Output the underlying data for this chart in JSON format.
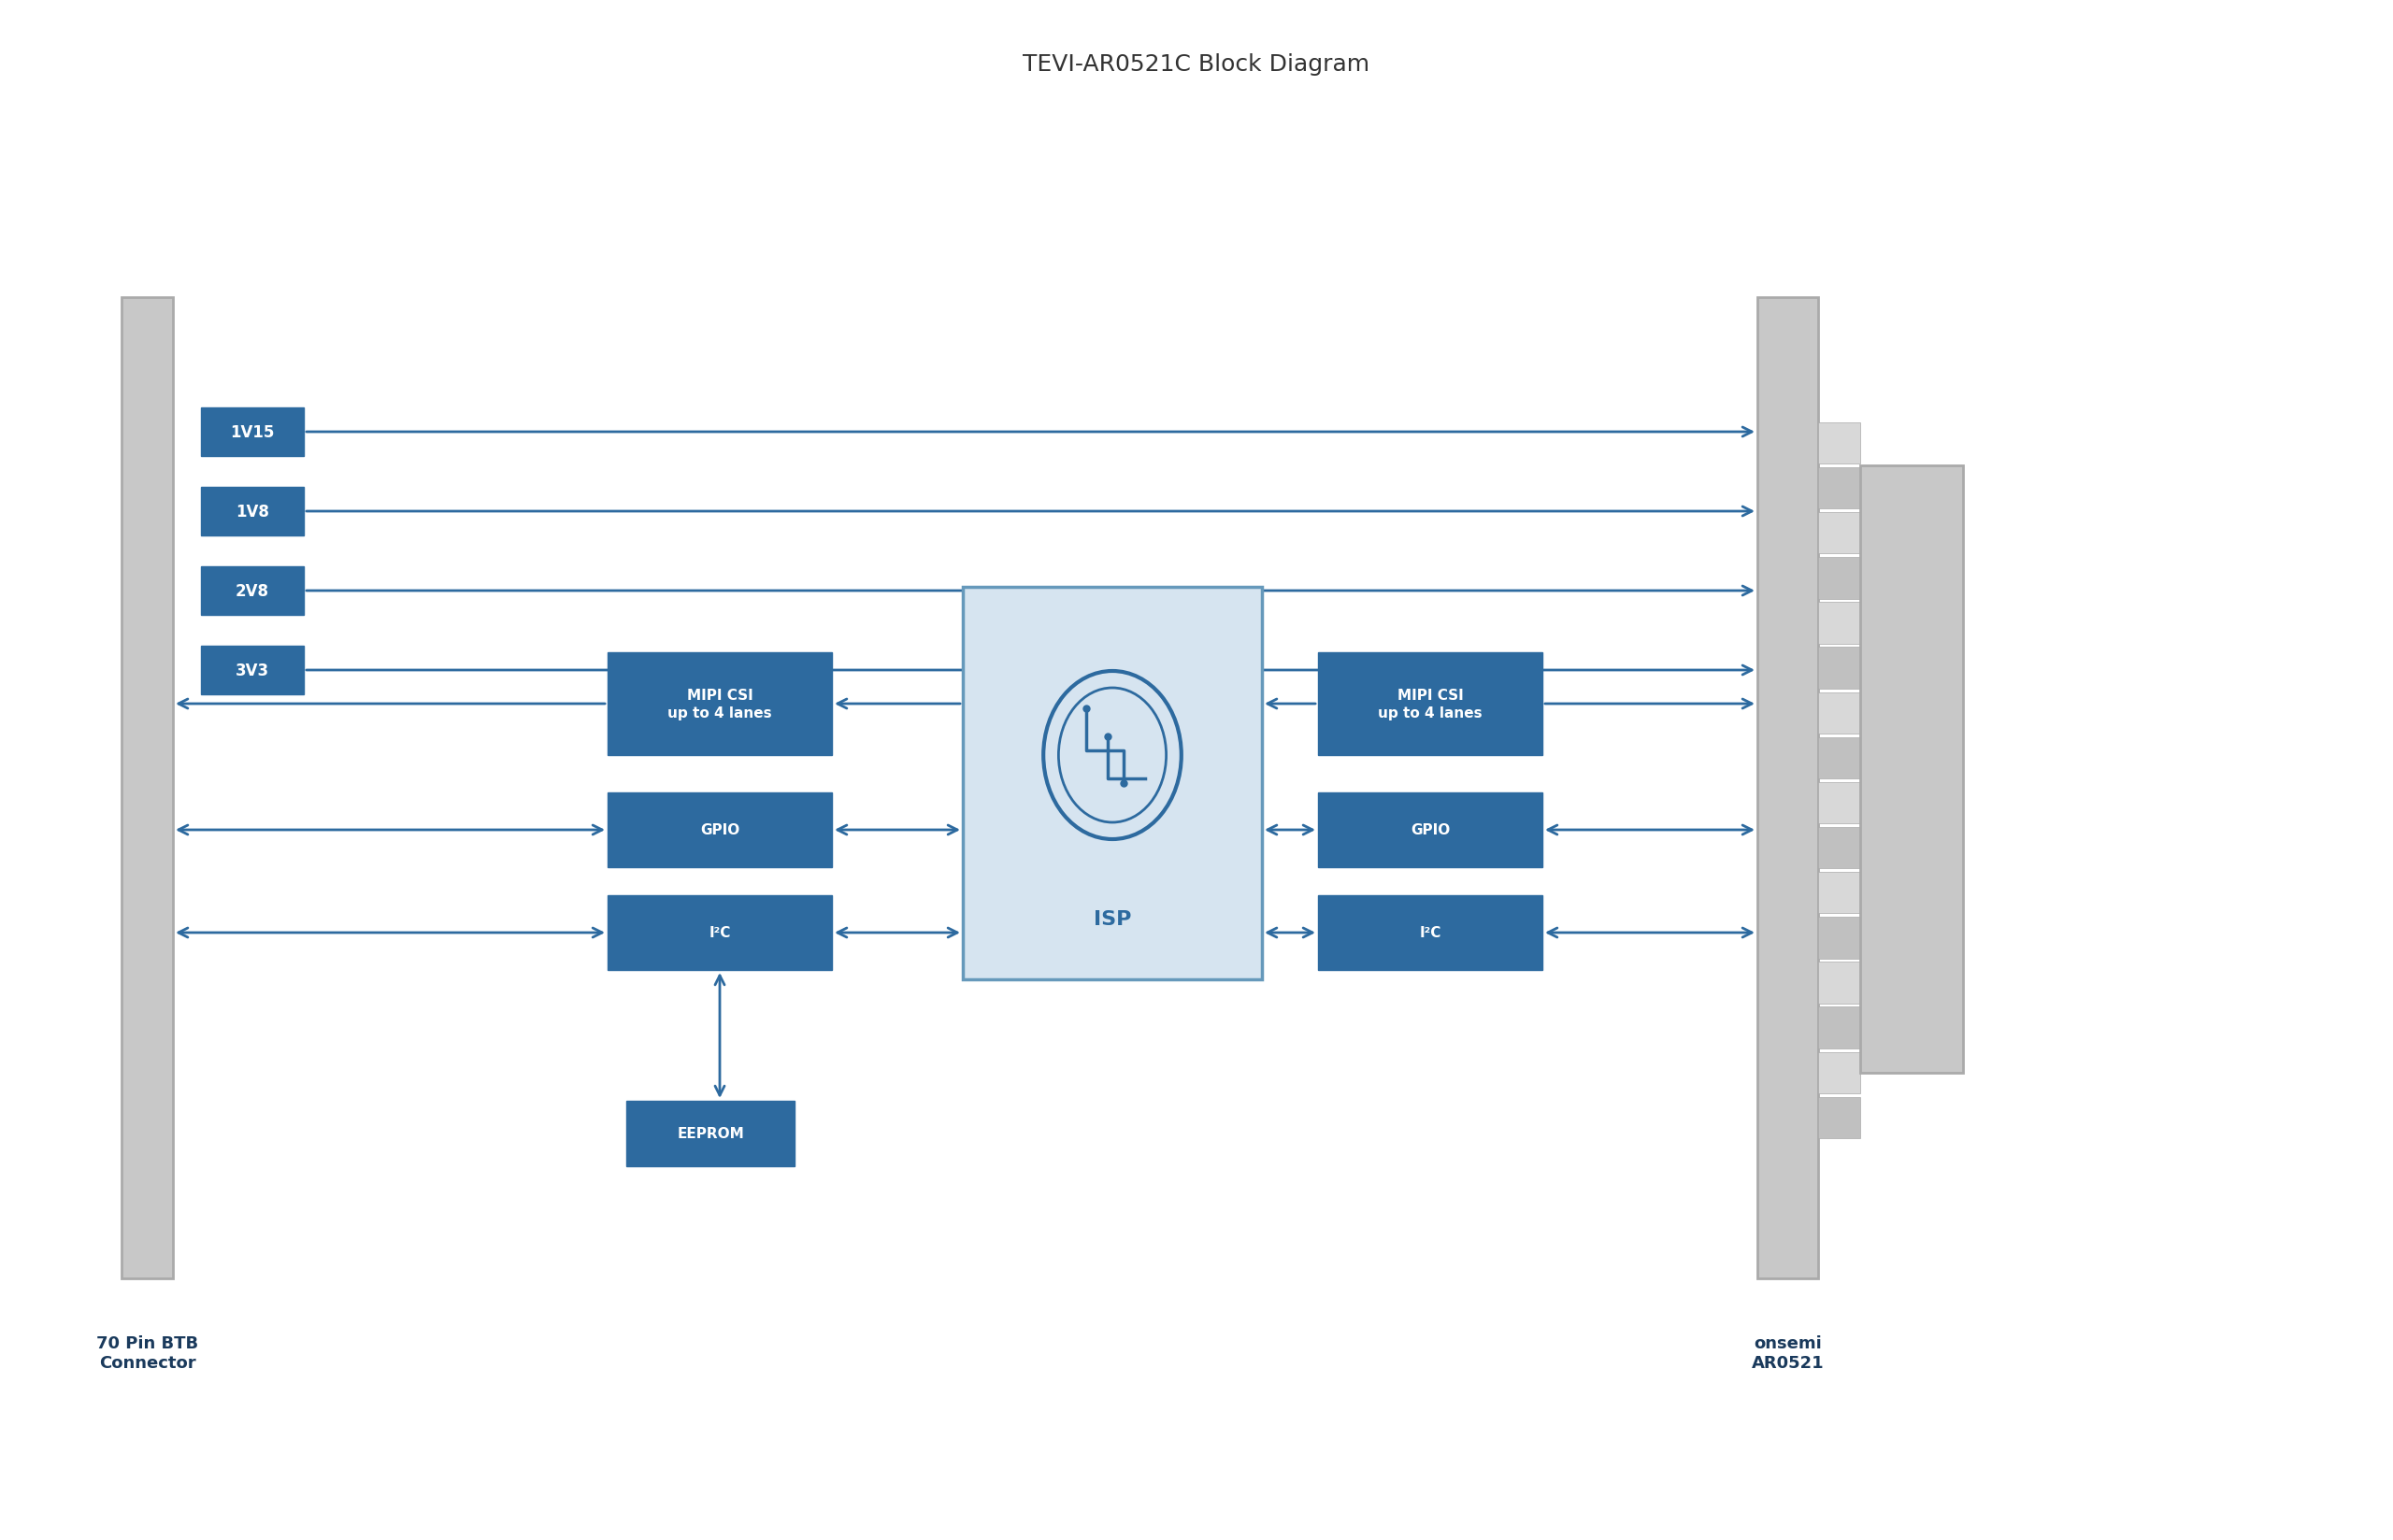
{
  "title": "TEVI-AR0521C Block Diagram",
  "bg_color": "#ffffff",
  "box_dark_blue": "#2d6a9f",
  "box_blue": "#3a7fc1",
  "isp_bg": "#d6e4f0",
  "connector_gray": "#c8c8c8",
  "arrow_color": "#2d6a9f",
  "text_white": "#ffffff",
  "text_dark": "#1a3a5c",
  "power_labels": [
    "1V15",
    "1V8",
    "2V8",
    "3V3"
  ],
  "left_boxes": [
    "MIPI CSI\nup to 4 lanes",
    "GPIO",
    "I²C"
  ],
  "right_boxes": [
    "MIPI CSI\nup to 4 lanes",
    "GPIO",
    "I²C"
  ],
  "eeprom_label": "EEPROM",
  "isp_label": "ISP",
  "left_connector_label": "70 Pin BTB\nConnector",
  "right_connector_label": "onsemi\nAR0521"
}
